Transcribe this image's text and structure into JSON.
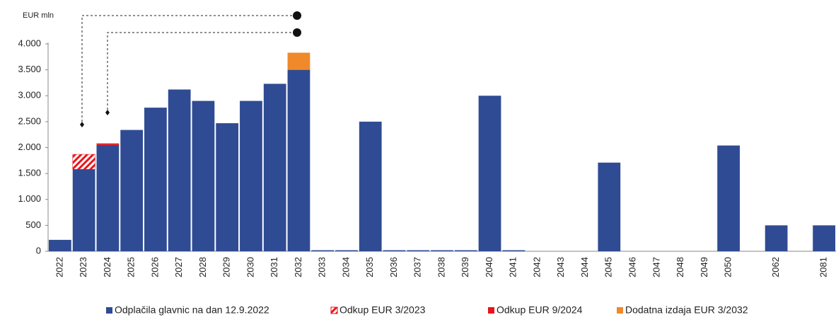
{
  "chart_data": {
    "type": "stacked_bar",
    "y_label": "EUR mln",
    "categories": [
      "2022",
      "2023",
      "2024",
      "2025",
      "2026",
      "2027",
      "2028",
      "2029",
      "2030",
      "2031",
      "2032",
      "2033",
      "2034",
      "2035",
      "2036",
      "2037",
      "2038",
      "2039",
      "2040",
      "2041",
      "2042",
      "2043",
      "2044",
      "2045",
      "2046",
      "2047",
      "2048",
      "2049",
      "2050",
      null,
      "2062",
      null,
      "2081"
    ],
    "series": [
      {
        "name": "Odplačila glavnic na dan 12.9.2022",
        "color": "#2f4b93",
        "hatch": false,
        "values": [
          220,
          1580,
          2050,
          2340,
          2770,
          3120,
          2900,
          2470,
          2900,
          3230,
          3500,
          20,
          20,
          2500,
          20,
          20,
          20,
          20,
          3000,
          20,
          0,
          0,
          0,
          1710,
          0,
          0,
          0,
          0,
          2040,
          0,
          500,
          0,
          500
        ]
      },
      {
        "name": "Odkup EUR 3/2023",
        "color": "#e8141c",
        "hatch": true,
        "values": [
          null,
          290,
          null,
          null,
          null,
          null,
          null,
          null,
          null,
          null,
          null,
          null,
          null,
          null,
          null,
          null,
          null,
          null,
          null,
          null,
          null,
          null,
          null,
          null,
          null,
          null,
          null,
          null,
          null,
          null,
          null,
          null,
          null
        ]
      },
      {
        "name": "Odkup EUR 9/2024",
        "color": "#e8141c",
        "hatch": false,
        "values": [
          null,
          null,
          30,
          null,
          null,
          null,
          null,
          null,
          null,
          null,
          null,
          null,
          null,
          null,
          null,
          null,
          null,
          null,
          null,
          null,
          null,
          null,
          null,
          null,
          null,
          null,
          null,
          null,
          null,
          null,
          null,
          null,
          null
        ]
      },
      {
        "name": "Dodatna izdaja EUR 3/2032",
        "color": "#f0892a",
        "hatch": false,
        "values": [
          null,
          null,
          null,
          null,
          null,
          null,
          null,
          null,
          null,
          null,
          330,
          null,
          null,
          null,
          null,
          null,
          null,
          null,
          null,
          null,
          null,
          null,
          null,
          null,
          null,
          null,
          null,
          null,
          null,
          null,
          null,
          null,
          null
        ]
      }
    ],
    "ylim": [
      0,
      4000
    ],
    "yticks": [
      0,
      500,
      {
        "value": 1000,
        "label": "1.000"
      },
      {
        "value": 1500,
        "label": "1.500"
      },
      {
        "value": 2000,
        "label": "2.000"
      },
      {
        "value": 2500,
        "label": "2.500"
      },
      {
        "value": 3000,
        "label": "3.000"
      },
      {
        "value": 3500,
        "label": "3.500"
      },
      {
        "value": 4000,
        "label": "4.000"
      }
    ],
    "grid": false,
    "legend": "bottom"
  }
}
